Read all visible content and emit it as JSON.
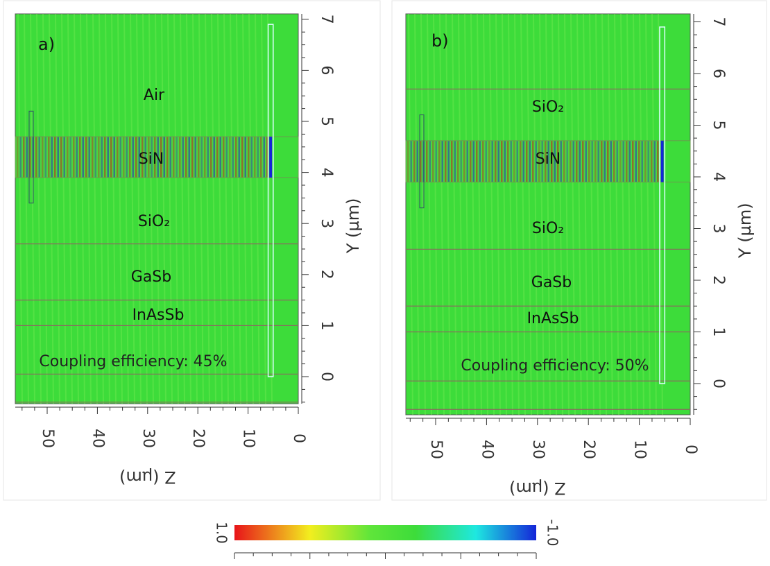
{
  "panels": [
    {
      "label": "a)",
      "layers": [
        "Air",
        "SiN",
        "SiO₂",
        "GaSb",
        "InAsSb"
      ],
      "coupling": "Coupling efficiency: 45%",
      "y_axis": {
        "title": "Y (µm)",
        "ticks": [
          0,
          1,
          2,
          3,
          4,
          5,
          6,
          7
        ]
      },
      "z_axis": {
        "title": "Z (µm)",
        "ticks": [
          0,
          10,
          20,
          30,
          40,
          50
        ]
      }
    },
    {
      "label": "b)",
      "layers": [
        "SiO₂",
        "SiN",
        "SiO₂",
        "GaSb",
        "InAsSb"
      ],
      "coupling": "Coupling efficiency: 50%",
      "y_axis": {
        "title": "Y (µm)",
        "ticks": [
          0,
          1,
          2,
          3,
          4,
          5,
          6,
          7
        ]
      },
      "z_axis": {
        "title": "Z (µm)",
        "ticks": [
          0,
          10,
          20,
          30,
          40,
          50
        ]
      }
    }
  ],
  "colorbar": {
    "max_label": "1.0",
    "min_label": "-1.0"
  }
}
